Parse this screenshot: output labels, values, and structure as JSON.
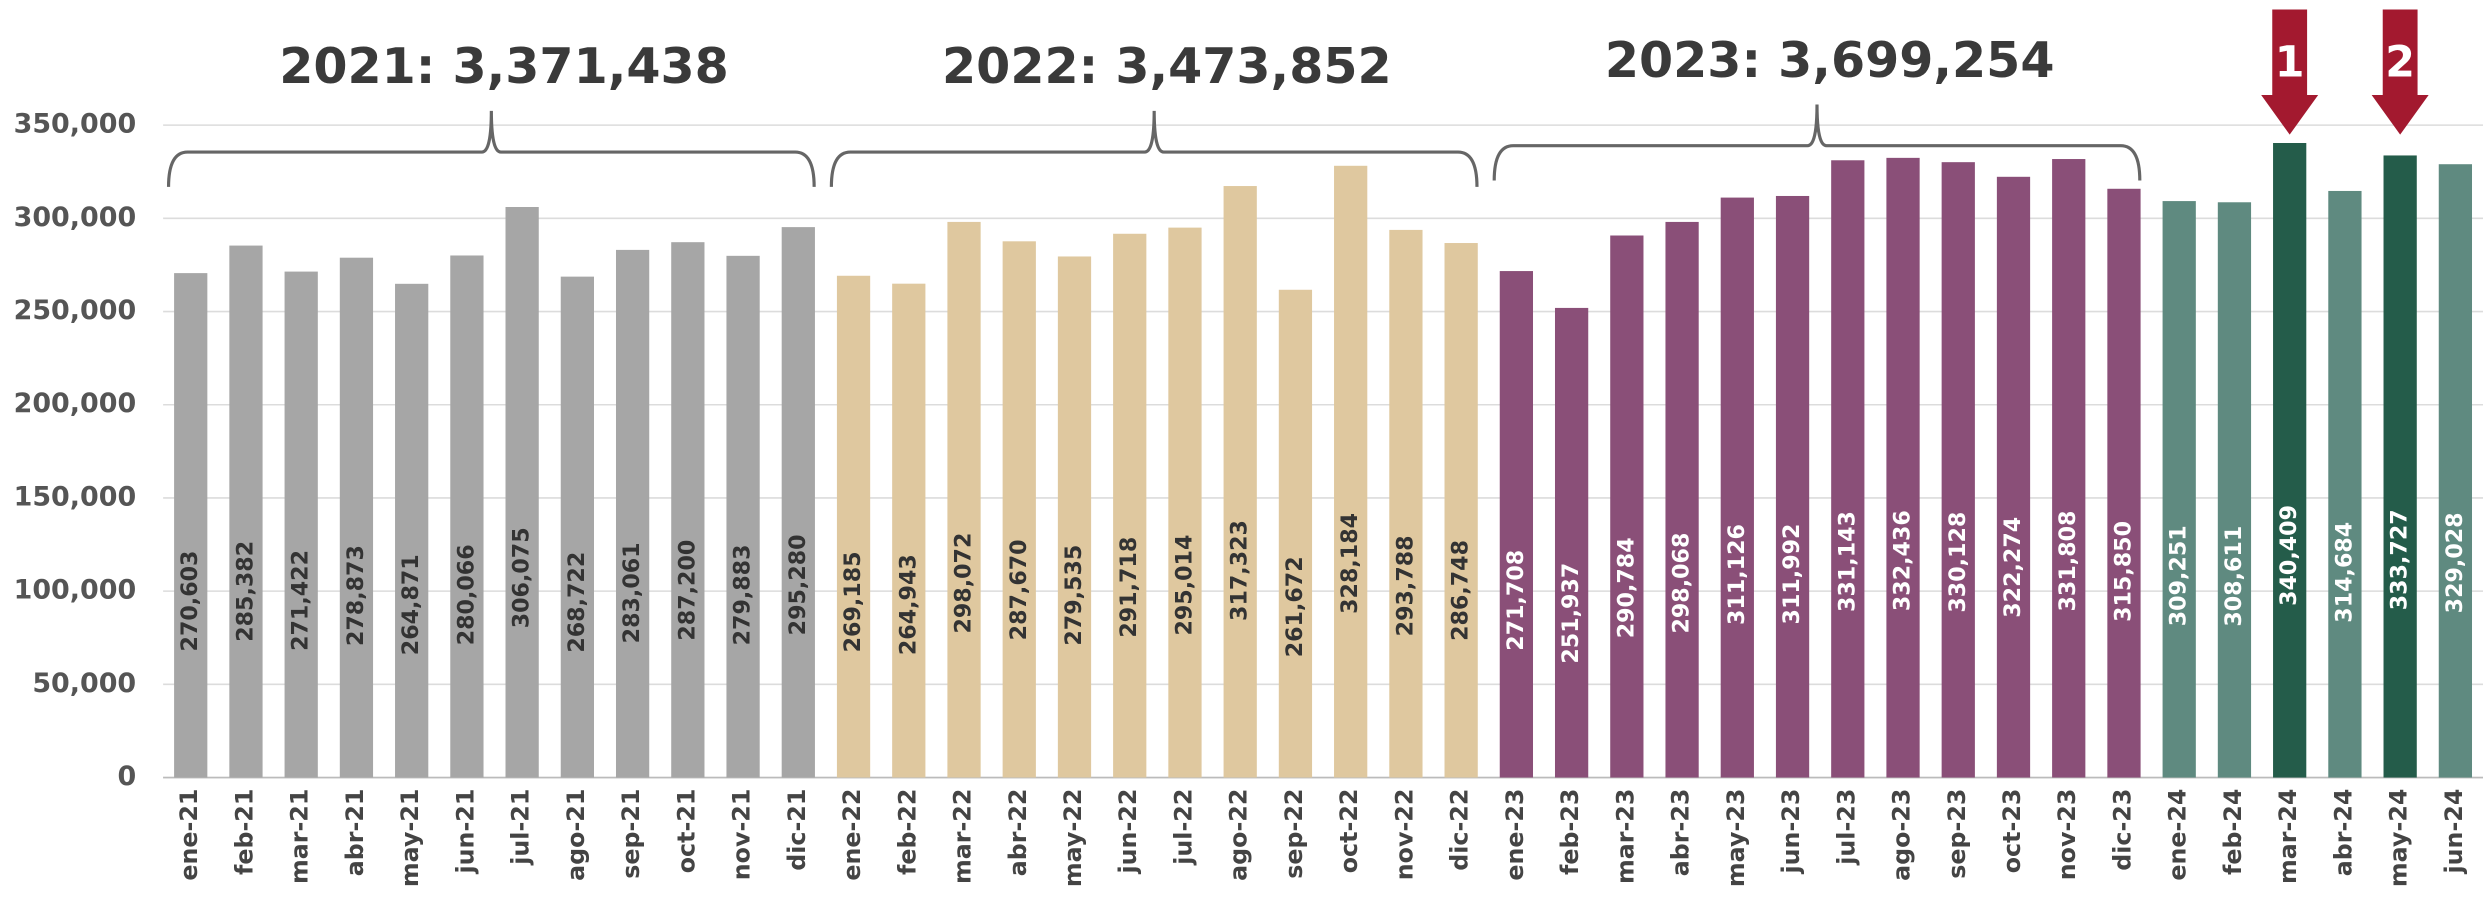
{
  "chart_data": {
    "type": "bar",
    "categories": [
      "ene-21",
      "feb-21",
      "mar-21",
      "abr-21",
      "may-21",
      "jun-21",
      "jul-21",
      "ago-21",
      "sep-21",
      "oct-21",
      "nov-21",
      "dic-21",
      "ene-22",
      "feb-22",
      "mar-22",
      "abr-22",
      "may-22",
      "jun-22",
      "jul-22",
      "ago-22",
      "sep-22",
      "oct-22",
      "nov-22",
      "dic-22",
      "ene-23",
      "feb-23",
      "mar-23",
      "abr-23",
      "may-23",
      "jun-23",
      "jul-23",
      "ago-23",
      "sep-23",
      "oct-23",
      "nov-23",
      "dic-23",
      "ene-24",
      "feb-24",
      "mar-24",
      "abr-24",
      "may-24",
      "jun-24"
    ],
    "values": [
      270603,
      285382,
      271422,
      278873,
      264871,
      280066,
      306075,
      268722,
      283061,
      287200,
      279883,
      295280,
      269185,
      264943,
      298072,
      287670,
      279535,
      291718,
      295014,
      317323,
      261672,
      328184,
      293788,
      286748,
      271708,
      251937,
      290784,
      298068,
      311126,
      311992,
      331143,
      332436,
      330128,
      322274,
      331808,
      315850,
      309251,
      308611,
      340409,
      314684,
      333727,
      329028
    ],
    "value_labels": [
      "270,603",
      "285,382",
      "271,422",
      "278,873",
      "264,871",
      "280,066",
      "306,075",
      "268,722",
      "283,061",
      "287,200",
      "279,883",
      "295,280",
      "269,185",
      "264,943",
      "298,072",
      "287,670",
      "279,535",
      "291,718",
      "295,014",
      "317,323",
      "261,672",
      "328,184",
      "293,788",
      "286,748",
      "271,708",
      "251,937",
      "290,784",
      "298,068",
      "311,126",
      "311,992",
      "331,143",
      "332,436",
      "330,128",
      "322,274",
      "331,808",
      "315,850",
      "309,251",
      "308,611",
      "340,409",
      "314,684",
      "333,727",
      "329,028"
    ],
    "colors": [
      "#a6a6a6",
      "#a6a6a6",
      "#a6a6a6",
      "#a6a6a6",
      "#a6a6a6",
      "#a6a6a6",
      "#a6a6a6",
      "#a6a6a6",
      "#a6a6a6",
      "#a6a6a6",
      "#a6a6a6",
      "#a6a6a6",
      "#dfc89f",
      "#dfc89f",
      "#dfc89f",
      "#dfc89f",
      "#dfc89f",
      "#dfc89f",
      "#dfc89f",
      "#dfc89f",
      "#dfc89f",
      "#dfc89f",
      "#dfc89f",
      "#dfc89f",
      "#8a4f78",
      "#8a4f78",
      "#8a4f78",
      "#8a4f78",
      "#8a4f78",
      "#8a4f78",
      "#8a4f78",
      "#8a4f78",
      "#8a4f78",
      "#8a4f78",
      "#8a4f78",
      "#8a4f78",
      "#5f8a80",
      "#5f8a80",
      "#245c4a",
      "#5f8a80",
      "#245c4a",
      "#5f8a80"
    ],
    "ylim": [
      0,
      350000
    ],
    "yticks": [
      0,
      {
        "value": 50000,
        "label": "50,000"
      },
      {
        "value": 100000,
        "label": "100,000"
      },
      {
        "value": 150000,
        "label": "150,000"
      },
      {
        "value": 200000,
        "label": "200,000"
      },
      {
        "value": 250000,
        "label": "250,000"
      },
      {
        "value": 300000,
        "label": "300,000"
      },
      {
        "value": 350000,
        "label": "350,000"
      }
    ],
    "grid": true,
    "annotations": [
      {
        "text": "2021: 3,371,438",
        "start": "ene-21",
        "end": "dic-21"
      },
      {
        "text": "2022: 3,473,852",
        "start": "ene-22",
        "end": "dic-22"
      },
      {
        "text": "2023: 3,699,254",
        "start": "ene-23",
        "end": "dic-23"
      }
    ],
    "markers": [
      {
        "label": "1",
        "category": "mar-24",
        "color": "#a3192f"
      },
      {
        "label": "2",
        "category": "may-24",
        "color": "#a3192f"
      }
    ]
  }
}
